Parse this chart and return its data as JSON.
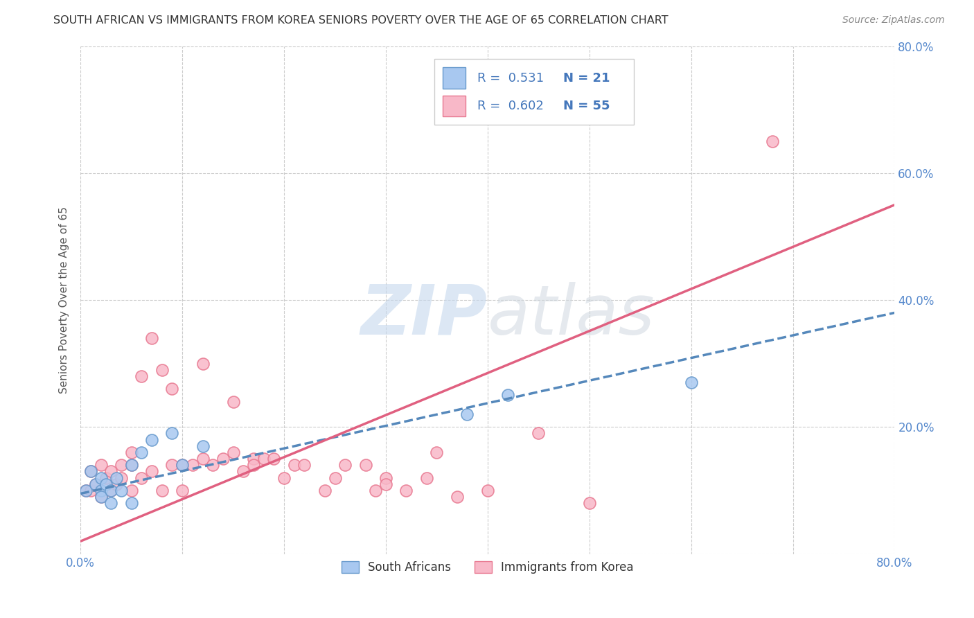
{
  "title": "SOUTH AFRICAN VS IMMIGRANTS FROM KOREA SENIORS POVERTY OVER THE AGE OF 65 CORRELATION CHART",
  "source": "Source: ZipAtlas.com",
  "ylabel": "Seniors Poverty Over the Age of 65",
  "xlim": [
    0.0,
    0.8
  ],
  "ylim": [
    0.0,
    0.8
  ],
  "xticks": [
    0.0,
    0.1,
    0.2,
    0.3,
    0.4,
    0.5,
    0.6,
    0.7,
    0.8
  ],
  "yticks": [
    0.0,
    0.2,
    0.4,
    0.6,
    0.8
  ],
  "xticklabels_left": "0.0%",
  "xticklabels_right": "80.0%",
  "yticklabels": [
    "",
    "20.0%",
    "40.0%",
    "60.0%",
    "80.0%"
  ],
  "grid_color": "#cccccc",
  "background_color": "#ffffff",
  "watermark_zip": "ZIP",
  "watermark_atlas": "atlas",
  "legend_R1": "R =  0.531",
  "legend_N1": "N = 21",
  "legend_R2": "R =  0.602",
  "legend_N2": "N = 55",
  "color_sa": "#a8c8f0",
  "color_sa_fill": "#a8c8f0",
  "color_sa_edge": "#6699cc",
  "color_sa_line": "#5588bb",
  "color_korea": "#f8b8c8",
  "color_korea_fill": "#f8b8c8",
  "color_korea_edge": "#e87890",
  "color_korea_line": "#e06080",
  "label_sa": "South Africans",
  "label_korea": "Immigrants from Korea",
  "sa_x": [
    0.005,
    0.01,
    0.015,
    0.02,
    0.02,
    0.02,
    0.025,
    0.03,
    0.03,
    0.035,
    0.04,
    0.05,
    0.05,
    0.06,
    0.07,
    0.09,
    0.1,
    0.12,
    0.38,
    0.42,
    0.6
  ],
  "sa_y": [
    0.1,
    0.13,
    0.11,
    0.1,
    0.12,
    0.09,
    0.11,
    0.1,
    0.08,
    0.12,
    0.1,
    0.14,
    0.08,
    0.16,
    0.18,
    0.19,
    0.14,
    0.17,
    0.22,
    0.25,
    0.27
  ],
  "korea_x": [
    0.005,
    0.01,
    0.01,
    0.015,
    0.02,
    0.02,
    0.025,
    0.03,
    0.03,
    0.035,
    0.04,
    0.04,
    0.05,
    0.05,
    0.05,
    0.06,
    0.06,
    0.07,
    0.07,
    0.08,
    0.08,
    0.09,
    0.09,
    0.1,
    0.1,
    0.11,
    0.12,
    0.12,
    0.13,
    0.14,
    0.15,
    0.15,
    0.16,
    0.17,
    0.17,
    0.18,
    0.19,
    0.2,
    0.21,
    0.22,
    0.24,
    0.25,
    0.26,
    0.28,
    0.29,
    0.3,
    0.3,
    0.32,
    0.34,
    0.35,
    0.37,
    0.4,
    0.45,
    0.5,
    0.68
  ],
  "korea_y": [
    0.1,
    0.1,
    0.13,
    0.11,
    0.09,
    0.14,
    0.12,
    0.1,
    0.13,
    0.11,
    0.12,
    0.14,
    0.1,
    0.14,
    0.16,
    0.12,
    0.28,
    0.34,
    0.13,
    0.1,
    0.29,
    0.14,
    0.26,
    0.14,
    0.1,
    0.14,
    0.15,
    0.3,
    0.14,
    0.15,
    0.16,
    0.24,
    0.13,
    0.15,
    0.14,
    0.15,
    0.15,
    0.12,
    0.14,
    0.14,
    0.1,
    0.12,
    0.14,
    0.14,
    0.1,
    0.12,
    0.11,
    0.1,
    0.12,
    0.16,
    0.09,
    0.1,
    0.19,
    0.08,
    0.65
  ],
  "sa_line_x": [
    0.0,
    0.8
  ],
  "sa_line_y": [
    0.095,
    0.38
  ],
  "korea_line_x": [
    0.0,
    0.8
  ],
  "korea_line_y": [
    0.02,
    0.55
  ]
}
